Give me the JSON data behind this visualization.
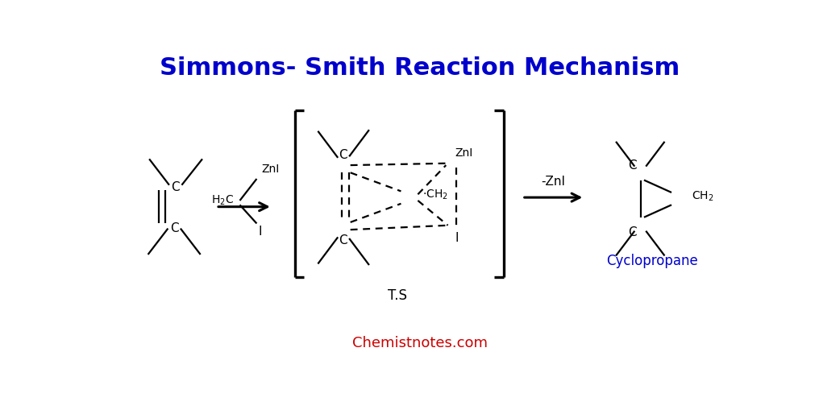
{
  "title": "Simmons- Smith Reaction Mechanism",
  "title_color": "#0000CC",
  "title_fontsize": 22,
  "website": "Chemistnotes.com",
  "website_color": "#CC0000",
  "background_color": "#FFFFFF",
  "ts_label": "T.S",
  "zni_label": "-ZnI",
  "cyclopropane_label": "Cyclopropane",
  "cyclopropane_color": "#0000CC"
}
